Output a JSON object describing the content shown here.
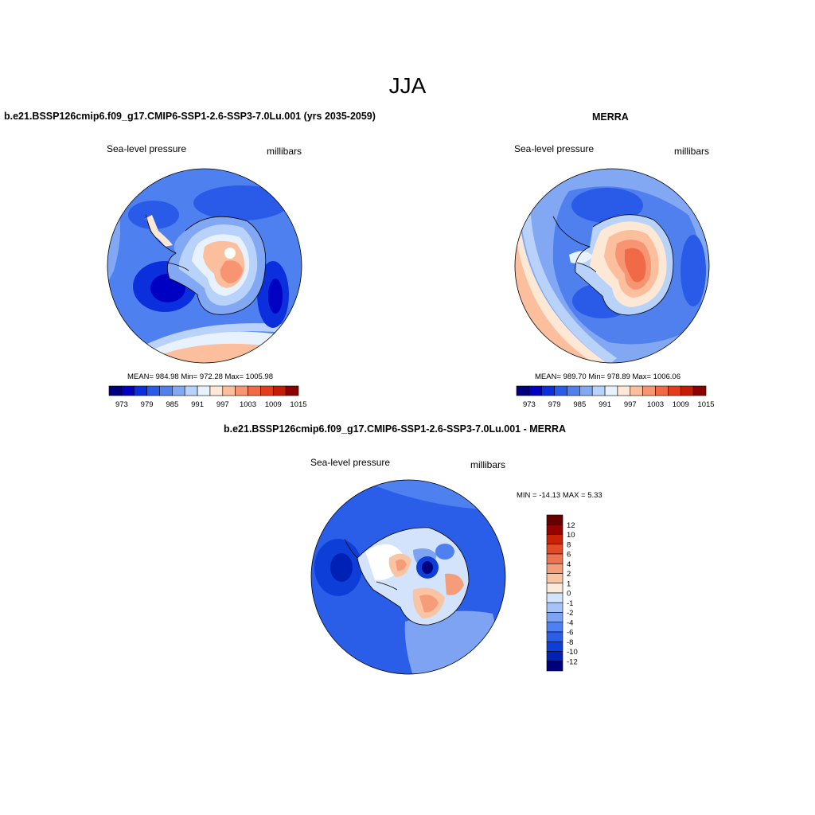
{
  "figure": {
    "title": "JJA"
  },
  "colors": {
    "seq13": [
      "#00007e",
      "#0000c2",
      "#0b2fdc",
      "#2a5ae8",
      "#5080ee",
      "#82a8f4",
      "#b8d2fa",
      "#e8f2fe",
      "#fde8d6",
      "#fbbf9e",
      "#f79572",
      "#f06a48",
      "#e33e1c",
      "#c41c06",
      "#8c0000"
    ],
    "diff": [
      "#00007e",
      "#0021b6",
      "#0d3fd8",
      "#2a5ee8",
      "#4f80ef",
      "#7ea3f3",
      "#a6c2f7",
      "#d2e3fb",
      "#fbe9dc",
      "#f8c4a4",
      "#f59c78",
      "#ef7350",
      "#e44a27",
      "#c82208",
      "#960000",
      "#660000"
    ]
  },
  "panels": [
    {
      "id": "model",
      "title": "b.e21.BSSP126cmip6.f09_g17.CMIP6-SSP1-2.6-SSP3-7.0Lu.001 (yrs 2035-2059)",
      "left_label": "Sea-level pressure",
      "right_label": "millibars",
      "stats": "MEAN= 984.98   Min= 972.28   Max= 1005.98",
      "colorbar_ticks": [
        "973",
        "979",
        "985",
        "991",
        "997",
        "1003",
        "1009",
        "1015"
      ]
    },
    {
      "id": "merra",
      "title": "MERRA",
      "left_label": "Sea-level pressure",
      "right_label": "millibars",
      "stats": "MEAN= 989.70   Min= 978.89   Max= 1006.06",
      "colorbar_ticks": [
        "973",
        "979",
        "985",
        "991",
        "997",
        "1003",
        "1009",
        "1015"
      ]
    },
    {
      "id": "diff",
      "title": "b.e21.BSSP126cmip6.f09_g17.CMIP6-SSP1-2.6-SSP3-7.0Lu.001 - MERRA",
      "left_label": "Sea-level pressure",
      "right_label": "millibars",
      "stats": "MIN = -14.13 MAX =   5.33",
      "colorbar_ticks": [
        "12",
        "10",
        "8",
        "6",
        "4",
        "2",
        "1",
        "0",
        "-1",
        "-2",
        "-4",
        "-6",
        "-8",
        "-10",
        "-12"
      ]
    }
  ]
}
